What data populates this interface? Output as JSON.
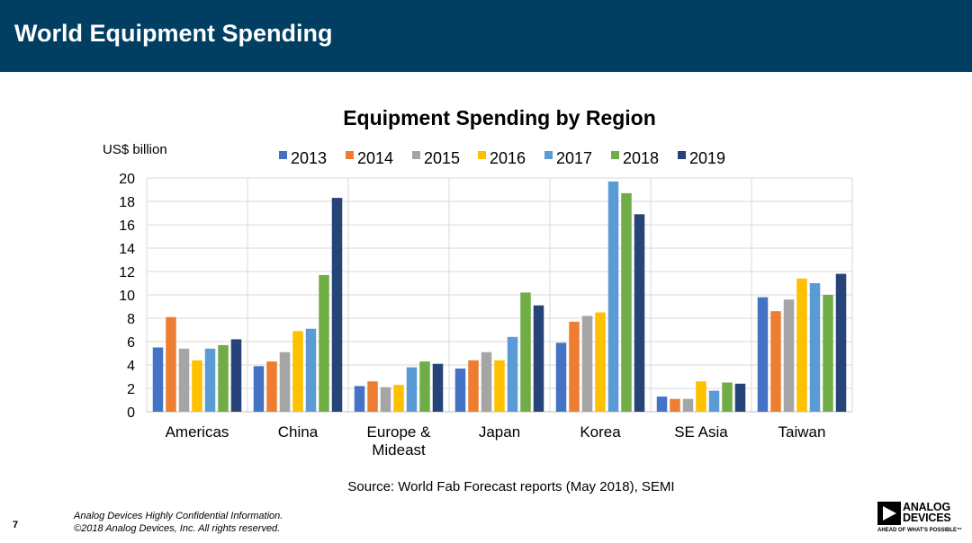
{
  "header": {
    "title": "World Equipment Spending"
  },
  "footer": {
    "page_number": "7",
    "confidential_line1": "Analog Devices Highly Confidential Information.",
    "confidential_line2": "©2018 Analog Devices, Inc. All rights reserved."
  },
  "logo": {
    "line1": "ANALOG",
    "line2": "DEVICES",
    "tagline": "AHEAD OF WHAT'S POSSIBLE™",
    "icon": "analog-devices-logo-icon"
  },
  "chart_data": {
    "type": "bar",
    "title": "Equipment Spending by Region",
    "ylabel": "US$ billion",
    "xlabel": "",
    "source": "Source: World Fab Forecast reports (May 2018), SEMI",
    "categories": [
      "Americas",
      "China",
      "Europe & Mideast",
      "Japan",
      "Korea",
      "SE Asia",
      "Taiwan"
    ],
    "ylim": [
      0,
      20
    ],
    "yticks": [
      0,
      2,
      4,
      6,
      8,
      10,
      12,
      14,
      16,
      18,
      20
    ],
    "grid": true,
    "legend_position": "top",
    "series": [
      {
        "name": "2013",
        "color": "#4472c4",
        "values": [
          5.5,
          3.9,
          2.2,
          3.7,
          5.9,
          1.3,
          9.8
        ]
      },
      {
        "name": "2014",
        "color": "#ed7d31",
        "values": [
          8.1,
          4.3,
          2.6,
          4.4,
          7.7,
          1.1,
          8.6
        ]
      },
      {
        "name": "2015",
        "color": "#a5a5a5",
        "values": [
          5.4,
          5.1,
          2.1,
          5.1,
          8.2,
          1.1,
          9.6
        ]
      },
      {
        "name": "2016",
        "color": "#ffc000",
        "values": [
          4.4,
          6.9,
          2.3,
          4.4,
          8.5,
          2.6,
          11.4
        ]
      },
      {
        "name": "2017",
        "color": "#5b9bd5",
        "values": [
          5.4,
          7.1,
          3.8,
          6.4,
          19.7,
          1.8,
          11.0
        ]
      },
      {
        "name": "2018",
        "color": "#70ad47",
        "values": [
          5.7,
          11.7,
          4.3,
          10.2,
          18.7,
          2.5,
          10.0
        ]
      },
      {
        "name": "2019",
        "color": "#264478",
        "values": [
          6.2,
          18.3,
          4.1,
          9.1,
          16.9,
          2.4,
          11.8
        ]
      }
    ]
  }
}
